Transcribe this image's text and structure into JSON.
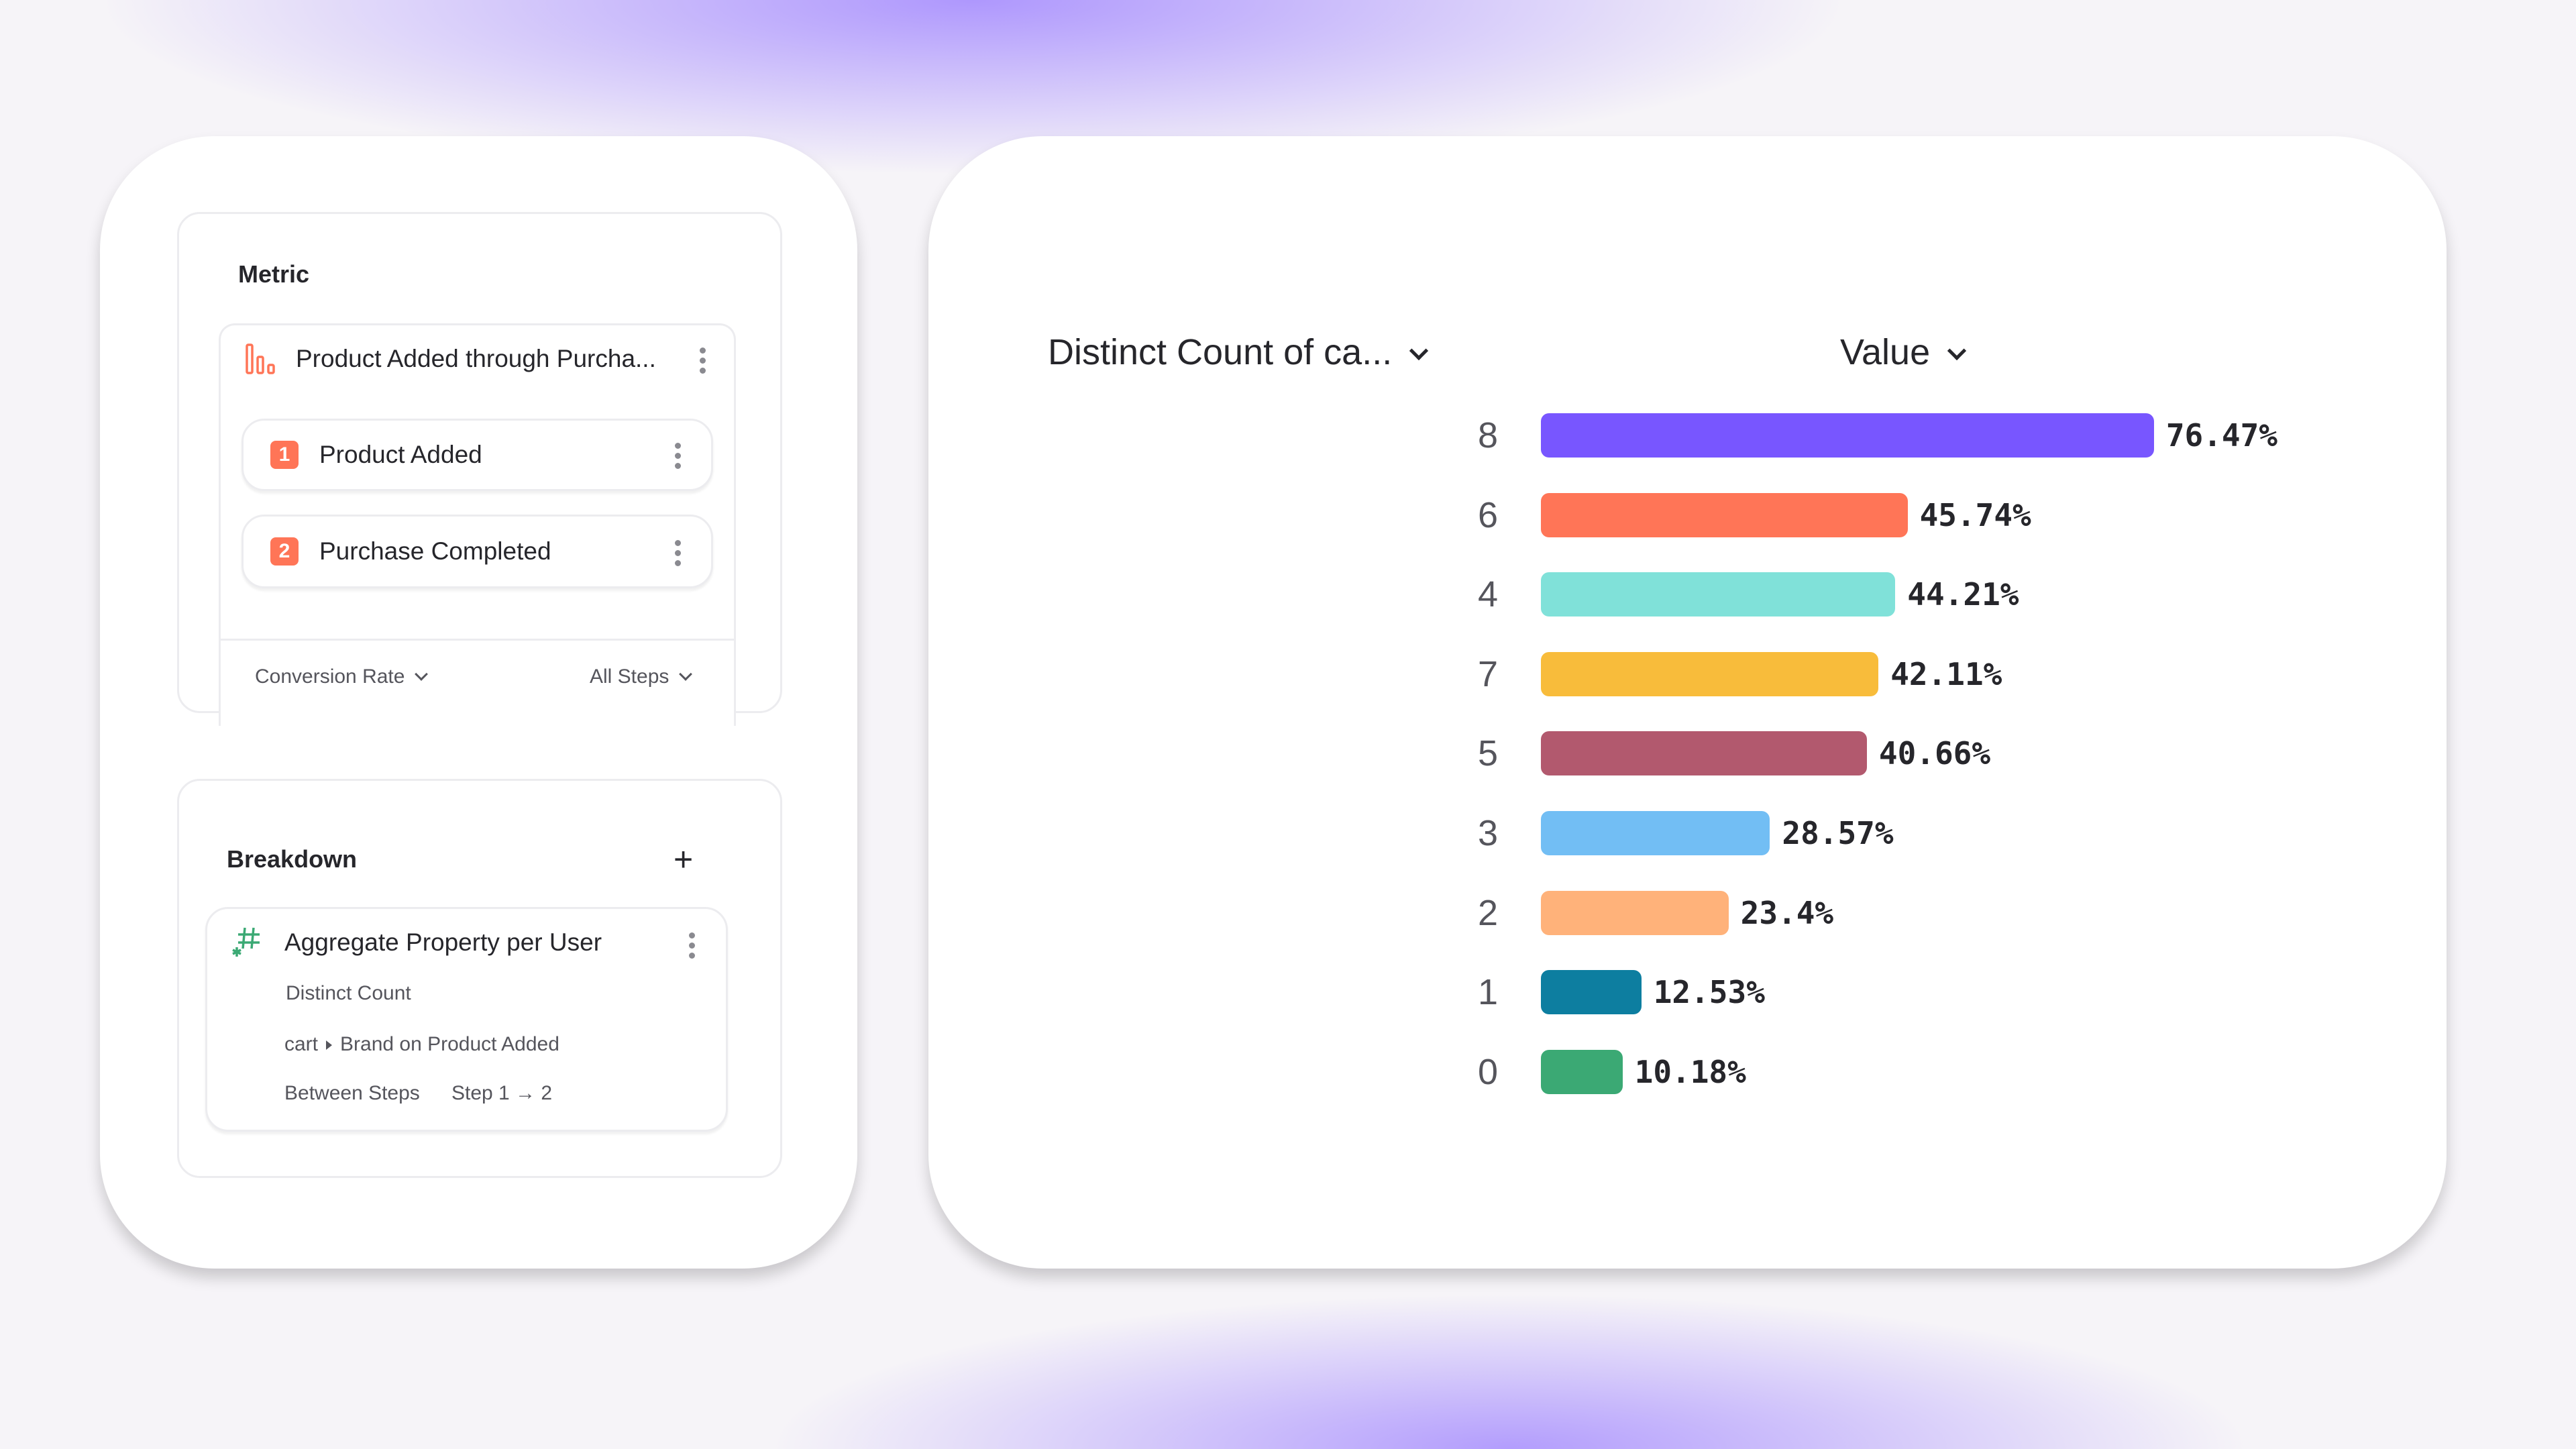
{
  "metric": {
    "heading": "Metric",
    "title": "Product Added through Purcha...",
    "steps": [
      {
        "num": "1",
        "label": "Product Added"
      },
      {
        "num": "2",
        "label": "Purchase Completed"
      }
    ],
    "measure": "Conversion Rate",
    "step_scope": "All Steps",
    "accent": "#ff7557"
  },
  "breakdown": {
    "heading": "Breakdown",
    "title": "Aggregate Property per User",
    "aggregation": "Distinct Count",
    "property_parent": "cart",
    "property": "Brand on Product Added",
    "scope_label": "Between Steps",
    "scope_value": "Step 1 → 2",
    "icon_color": "#3ba974"
  },
  "chart_data": {
    "type": "bar",
    "orientation": "horizontal",
    "category_header": "Distinct Count of ca...",
    "value_header": "Value",
    "categories": [
      "8",
      "6",
      "4",
      "7",
      "5",
      "3",
      "2",
      "1",
      "0"
    ],
    "values": [
      76.47,
      45.74,
      44.21,
      42.11,
      40.66,
      28.57,
      23.4,
      12.53,
      10.18
    ],
    "labels": [
      "76.47%",
      "45.74%",
      "44.21%",
      "42.11%",
      "40.66%",
      "28.57%",
      "23.4%",
      "12.53%",
      "10.18%"
    ],
    "colors": [
      "#7856ff",
      "#ff7557",
      "#80e1d9",
      "#f8bc3b",
      "#b2596e",
      "#72bef4",
      "#ffb27a",
      "#0d7ea0",
      "#3ba974"
    ],
    "unit": "%"
  }
}
